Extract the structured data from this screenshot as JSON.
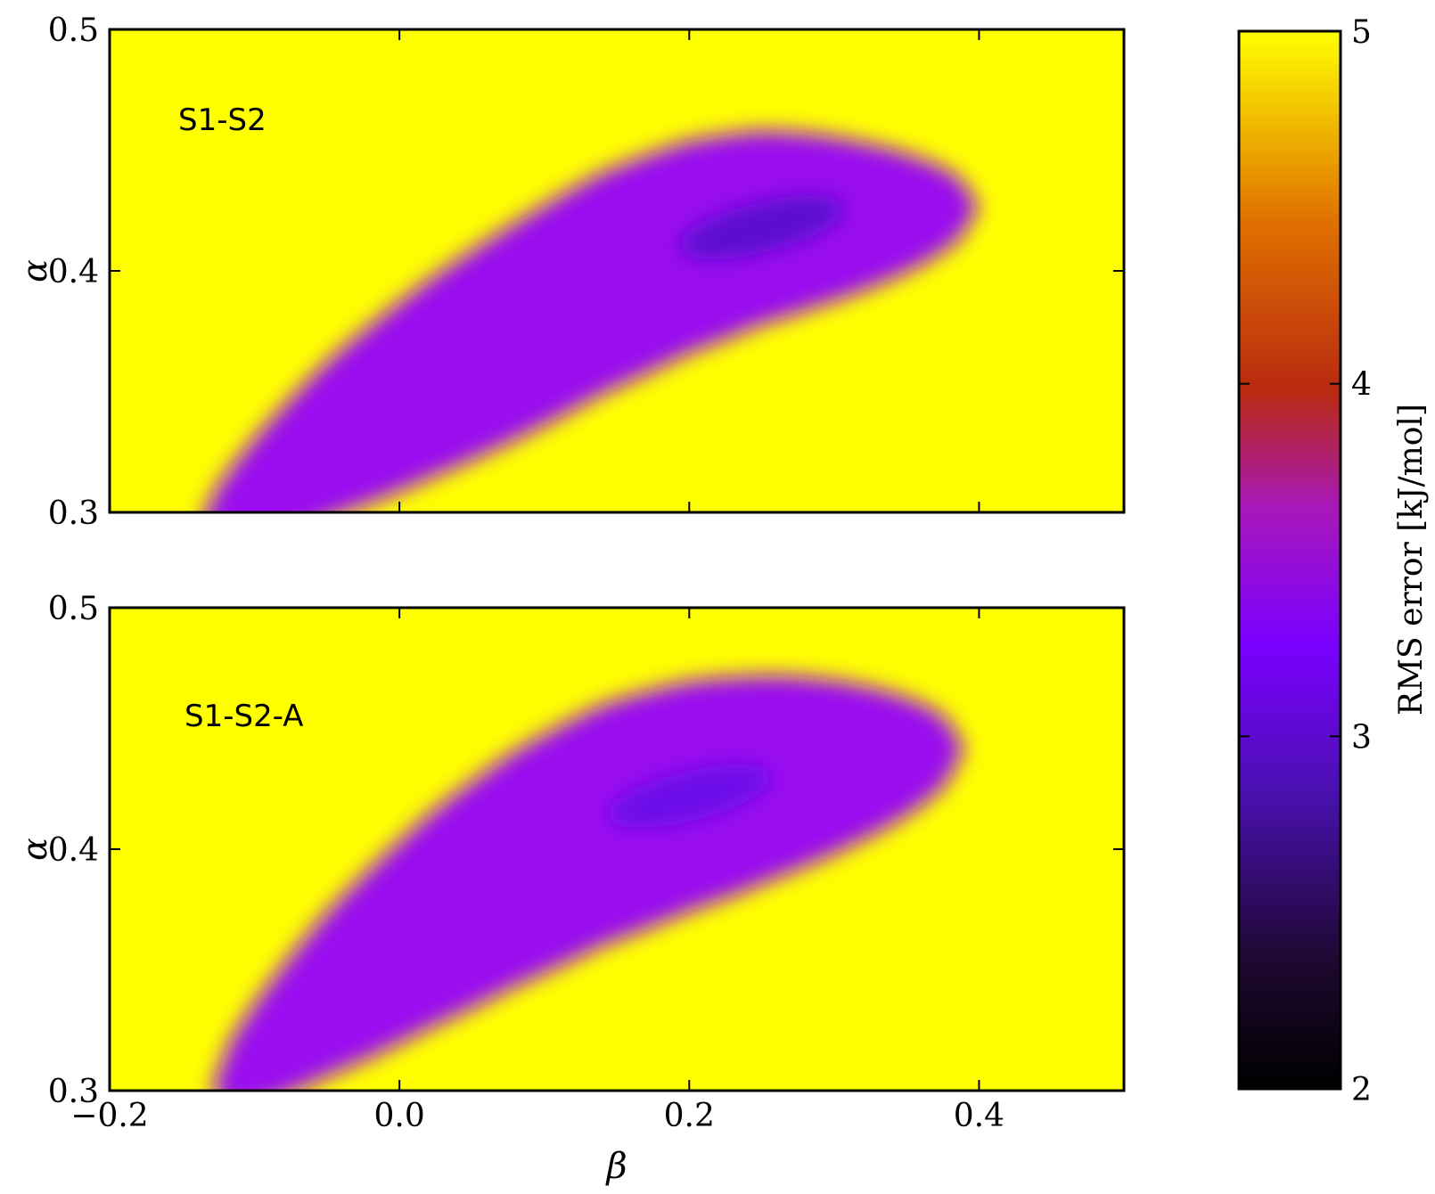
{
  "chart_data": {
    "type": "heatmap",
    "x_axis": {
      "label": "β",
      "range": [
        -0.2,
        0.5
      ],
      "ticks": [
        -0.2,
        0.0,
        0.2,
        0.4
      ],
      "tick_labels": [
        "−0.2",
        "0.0",
        "0.2",
        "0.4"
      ]
    },
    "panels": [
      {
        "label": "S1-S2",
        "y_axis": {
          "label": "α",
          "range": [
            0.3,
            0.5
          ],
          "ticks": [
            0.3,
            0.4,
            0.5
          ],
          "tick_labels": [
            "0.3",
            "0.4",
            "0.5"
          ]
        },
        "valley_centerline": [
          [
            -0.12,
            0.3
          ],
          [
            -0.05,
            0.33
          ],
          [
            0.02,
            0.355
          ],
          [
            0.08,
            0.375
          ],
          [
            0.14,
            0.395
          ],
          [
            0.2,
            0.41
          ],
          [
            0.25,
            0.418
          ],
          [
            0.29,
            0.421
          ],
          [
            0.33,
            0.423
          ]
        ],
        "minimum": {
          "beta": 0.25,
          "alpha": 0.418,
          "rms": 2.6
        },
        "contour_levels": [
          {
            "rms": 3.0,
            "beta_range": [
              -0.02,
              0.33
            ],
            "half_width": 0.021
          },
          {
            "rms": 3.5,
            "beta_range": [
              -0.1,
              0.37
            ],
            "half_width": 0.032
          },
          {
            "rms": 4.5,
            "beta_range": [
              -0.14,
              0.4
            ],
            "half_width": 0.046
          }
        ]
      },
      {
        "label": "S1-S2-A",
        "y_axis": {
          "label": "α",
          "range": [
            0.3,
            0.5
          ],
          "ticks": [
            0.3,
            0.4,
            0.5
          ],
          "tick_labels": [
            "0.3",
            "0.4",
            "0.5"
          ]
        },
        "valley_centerline": [
          [
            -0.12,
            0.305
          ],
          [
            -0.05,
            0.34
          ],
          [
            0.02,
            0.37
          ],
          [
            0.08,
            0.392
          ],
          [
            0.14,
            0.41
          ],
          [
            0.2,
            0.422
          ],
          [
            0.26,
            0.43
          ],
          [
            0.31,
            0.435
          ],
          [
            0.37,
            0.44
          ]
        ],
        "minimum": {
          "beta": 0.2,
          "alpha": 0.422,
          "rms": 2.7
        },
        "contour_levels": [
          {
            "rms": 3.0,
            "beta_range": [
              0.03,
              0.31
            ],
            "half_width": 0.024
          },
          {
            "rms": 3.5,
            "beta_range": [
              -0.05,
              0.36
            ],
            "half_width": 0.036
          },
          {
            "rms": 4.5,
            "beta_range": [
              -0.13,
              0.39
            ],
            "half_width": 0.05
          }
        ]
      }
    ],
    "colorbar": {
      "label": "RMS error [kJ/mol]",
      "range": [
        2,
        5
      ],
      "ticks": [
        2,
        3,
        4,
        5
      ],
      "tick_labels": [
        "2",
        "3",
        "4",
        "5"
      ],
      "colormap": "gnuplot",
      "colors": [
        "#000000",
        "#3a0a70",
        "#7a00ff",
        "#a020b0",
        "#b82a10",
        "#e07000",
        "#ffff00"
      ]
    }
  }
}
